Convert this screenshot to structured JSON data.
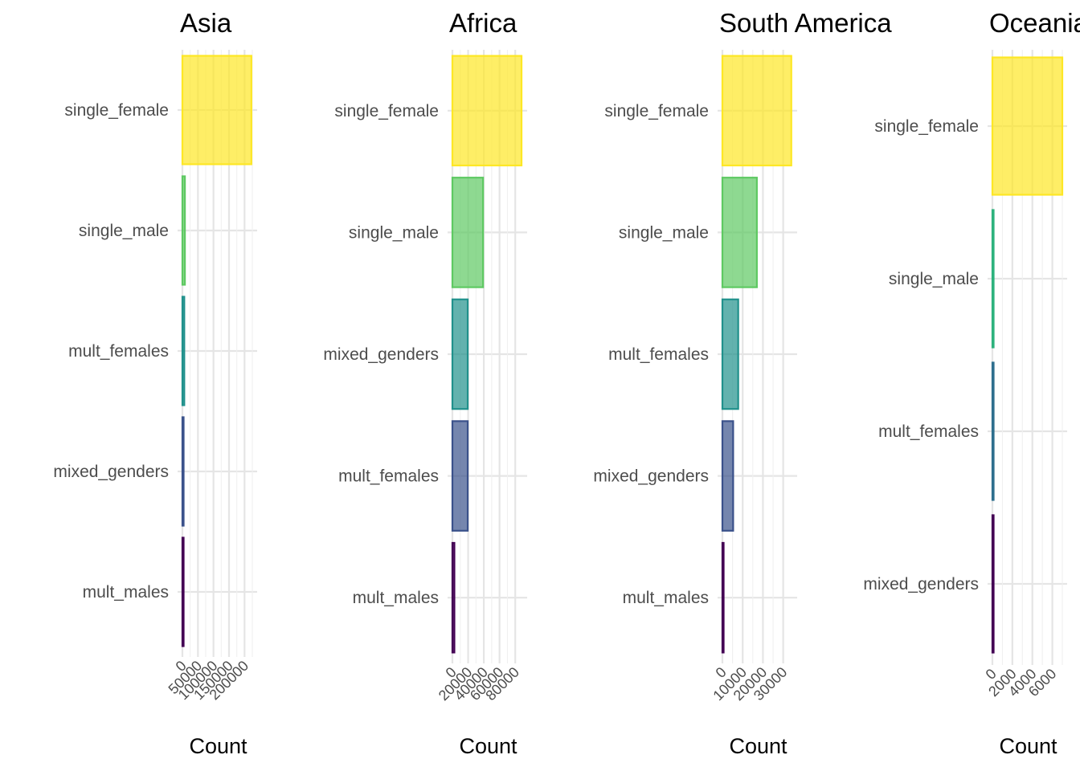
{
  "chart_data": [
    {
      "type": "bar",
      "orientation": "horizontal",
      "title": "Asia",
      "xlabel": "Count",
      "ylabel": "",
      "xlim": [
        0,
        225000
      ],
      "xticks": [
        0,
        50000,
        100000,
        150000,
        200000
      ],
      "xtick_labels": [
        "0",
        "50000",
        "100000",
        "150000",
        "200000"
      ],
      "categories": [
        "single_female",
        "single_male",
        "mult_females",
        "mixed_genders",
        "mult_males"
      ],
      "values": [
        222000,
        8000,
        6000,
        2000,
        500
      ],
      "colors": [
        "#FDE725",
        "#5EC962",
        "#21918C",
        "#3B528B",
        "#440154"
      ]
    },
    {
      "type": "bar",
      "orientation": "horizontal",
      "title": "Africa",
      "xlabel": "Count",
      "ylabel": "",
      "xlim": [
        0,
        89000
      ],
      "xticks": [
        0,
        20000,
        40000,
        60000,
        80000
      ],
      "xtick_labels": [
        "0",
        "20000",
        "40000",
        "60000",
        "80000"
      ],
      "categories": [
        "single_female",
        "single_male",
        "mixed_genders",
        "mult_females",
        "mult_males"
      ],
      "values": [
        88000,
        39000,
        19500,
        19500,
        2500
      ],
      "colors": [
        "#FDE725",
        "#5EC962",
        "#21918C",
        "#3B528B",
        "#440154"
      ]
    },
    {
      "type": "bar",
      "orientation": "horizontal",
      "title": "South America",
      "xlabel": "Count",
      "ylabel": "",
      "xlim": [
        0,
        34500
      ],
      "xticks": [
        0,
        10000,
        20000,
        30000
      ],
      "xtick_labels": [
        "0",
        "10000",
        "20000",
        "30000"
      ],
      "categories": [
        "single_female",
        "single_male",
        "mult_females",
        "mixed_genders",
        "mult_males"
      ],
      "values": [
        34000,
        17000,
        7800,
        5300,
        600
      ],
      "colors": [
        "#FDE725",
        "#5EC962",
        "#21918C",
        "#3B528B",
        "#440154"
      ]
    },
    {
      "type": "bar",
      "orientation": "horizontal",
      "title": "Oceania",
      "xlabel": "Count",
      "ylabel": "",
      "xlim": [
        0,
        7000
      ],
      "xticks": [
        0,
        2000,
        4000,
        6000
      ],
      "xtick_labels": [
        "0",
        "2000",
        "4000",
        "6000"
      ],
      "categories": [
        "single_female",
        "single_male",
        "mult_females",
        "mixed_genders"
      ],
      "values": [
        7000,
        60,
        40,
        20
      ],
      "colors": [
        "#FDE725",
        "#2DB27D",
        "#2E6F8E",
        "#440154"
      ]
    }
  ]
}
